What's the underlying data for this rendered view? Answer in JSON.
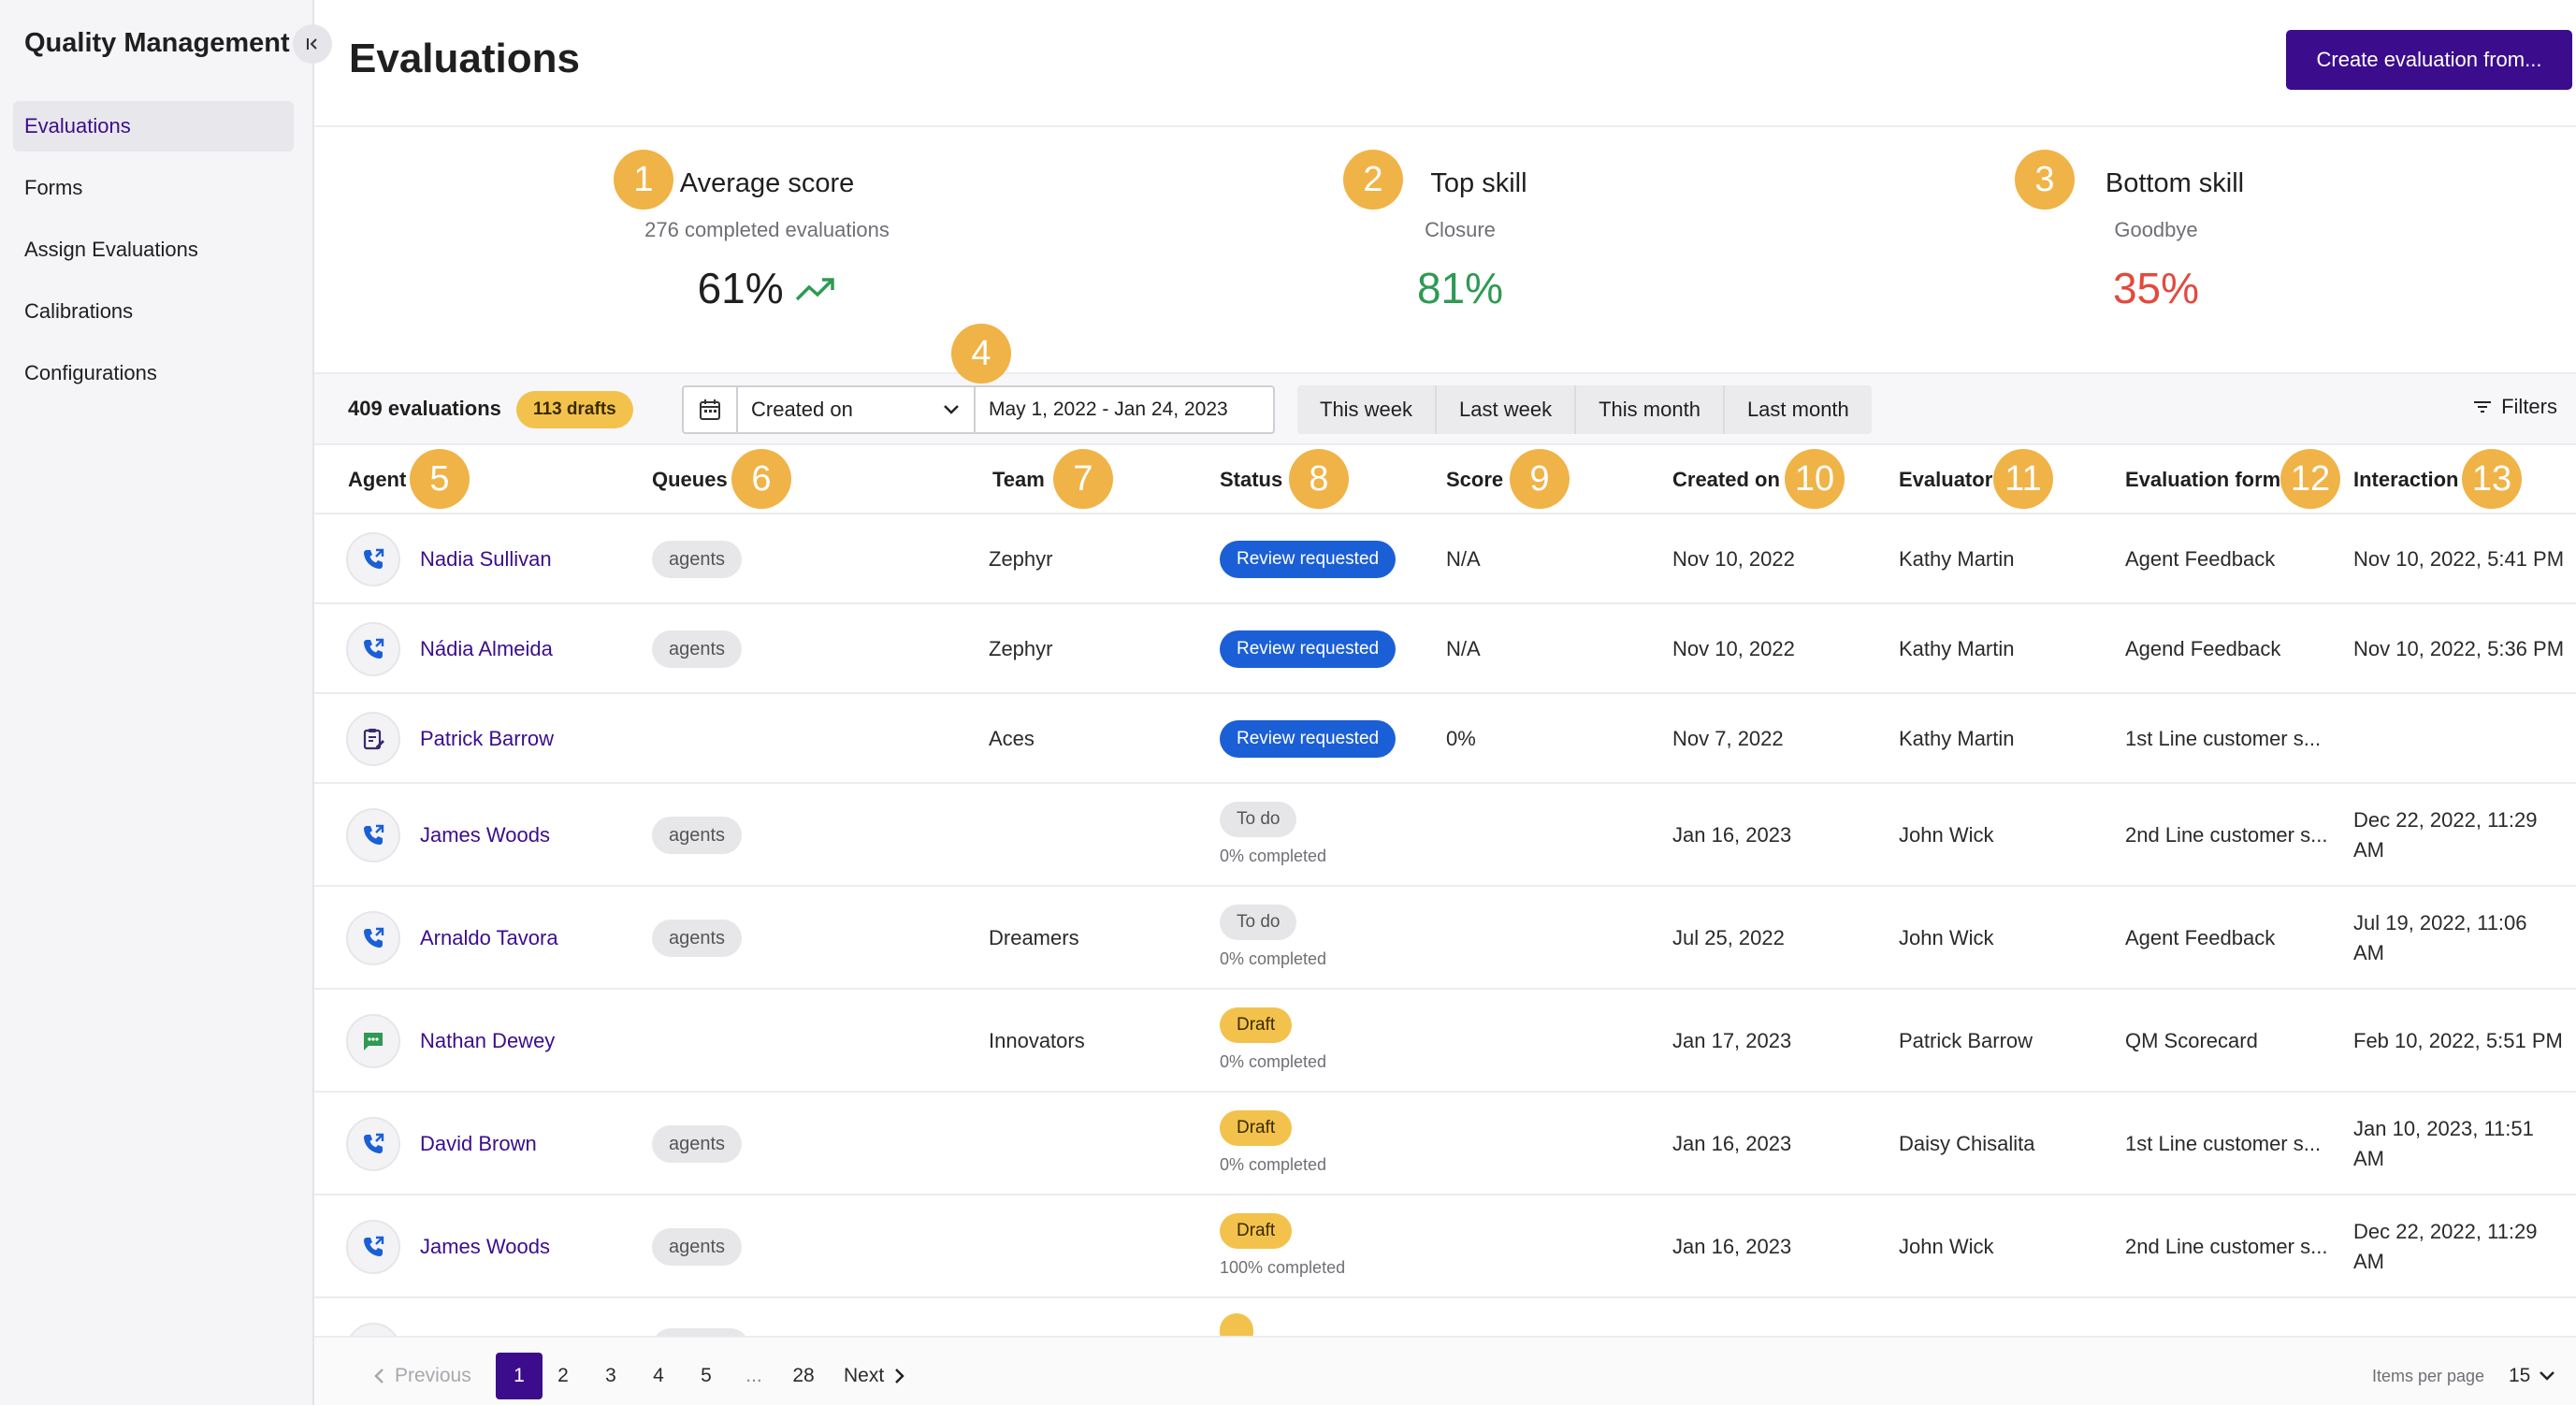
{
  "sidebar": {
    "title": "Quality Management",
    "items": [
      {
        "label": "Evaluations"
      },
      {
        "label": "Forms"
      },
      {
        "label": "Assign Evaluations"
      },
      {
        "label": "Calibrations"
      },
      {
        "label": "Configurations"
      }
    ]
  },
  "header": {
    "title": "Evaluations",
    "create_label": "Create evaluation from..."
  },
  "kpis": {
    "average": {
      "marker": "1",
      "title": "Average score",
      "sub": "276 completed evaluations",
      "value": "61%"
    },
    "top": {
      "marker": "2",
      "title": "Top skill",
      "sub": "Closure",
      "value": "81%"
    },
    "bottom": {
      "marker": "3",
      "title": "Bottom skill",
      "sub": "Goodbye",
      "value": "35%"
    }
  },
  "toolbar": {
    "count": "409 evaluations",
    "drafts": "113 drafts",
    "marker": "4",
    "date_field": "Created on",
    "date_range": "May 1, 2022 - Jan 24, 2023",
    "quick": [
      "This week",
      "Last week",
      "This month",
      "Last month"
    ],
    "filters": "Filters"
  },
  "columns": [
    {
      "label": "Agent",
      "marker": "5"
    },
    {
      "label": "Queues",
      "marker": "6"
    },
    {
      "label": "Team",
      "marker": "7"
    },
    {
      "label": "Status",
      "marker": "8"
    },
    {
      "label": "Score",
      "marker": "9"
    },
    {
      "label": "Created on",
      "marker": "10"
    },
    {
      "label": "Evaluator",
      "marker": "11"
    },
    {
      "label": "Evaluation form",
      "marker": "12"
    },
    {
      "label": "Interaction",
      "marker": "13"
    }
  ],
  "rows": [
    {
      "icon": "phone-icon",
      "agent": "Nadia Sullivan",
      "queue": "agents",
      "team": "Zephyr",
      "status": "Review requested",
      "status_kind": "review",
      "progress": "",
      "score": "N/A",
      "created": "Nov 10, 2022",
      "evaluator": "Kathy Martin",
      "form": "Agent Feedback",
      "interaction": "Nov 10, 2022, 5:41 PM",
      "interaction2": ""
    },
    {
      "icon": "phone-icon",
      "agent": "Nádia Almeida",
      "queue": "agents",
      "team": "Zephyr",
      "status": "Review requested",
      "status_kind": "review",
      "progress": "",
      "score": "N/A",
      "created": "Nov 10, 2022",
      "evaluator": "Kathy Martin",
      "form": "Agend Feedback",
      "interaction": "Nov 10, 2022, 5:36 PM",
      "interaction2": ""
    },
    {
      "icon": "clipboard-icon",
      "agent": "Patrick Barrow",
      "queue": "",
      "team": "Aces",
      "status": "Review requested",
      "status_kind": "review",
      "progress": "",
      "score": "0%",
      "created": "Nov 7, 2022",
      "evaluator": "Kathy Martin",
      "form": "1st Line customer s...",
      "interaction": "",
      "interaction2": ""
    },
    {
      "icon": "phone-icon",
      "agent": "James Woods",
      "queue": "agents",
      "team": "",
      "status": "To do",
      "status_kind": "todo",
      "progress": "0% completed",
      "score": "",
      "created": "Jan 16, 2023",
      "evaluator": "John Wick",
      "form": "2nd Line customer s...",
      "interaction": "Dec 22, 2022, 11:29",
      "interaction2": "AM"
    },
    {
      "icon": "phone-icon",
      "agent": "Arnaldo Tavora",
      "queue": "agents",
      "team": "Dreamers",
      "status": "To do",
      "status_kind": "todo",
      "progress": "0% completed",
      "score": "",
      "created": "Jul 25, 2022",
      "evaluator": "John Wick",
      "form": "Agent Feedback",
      "interaction": "Jul 19, 2022, 11:06",
      "interaction2": "AM"
    },
    {
      "icon": "chat-icon",
      "agent": "Nathan Dewey",
      "queue": "",
      "team": "Innovators",
      "status": "Draft",
      "status_kind": "draft",
      "progress": "0% completed",
      "score": "",
      "created": "Jan 17, 2023",
      "evaluator": "Patrick Barrow",
      "form": "QM Scorecard",
      "interaction": "Feb 10, 2022, 5:51 PM",
      "interaction2": ""
    },
    {
      "icon": "phone-icon",
      "agent": "David Brown",
      "queue": "agents",
      "team": "",
      "status": "Draft",
      "status_kind": "draft",
      "progress": "0% completed",
      "score": "",
      "created": "Jan 16, 2023",
      "evaluator": "Daisy Chisalita",
      "form": "1st Line customer s...",
      "interaction": "Jan 10, 2023, 11:51",
      "interaction2": "AM"
    },
    {
      "icon": "phone-icon",
      "agent": "James Woods",
      "queue": "agents",
      "team": "",
      "status": "Draft",
      "status_kind": "draft",
      "progress": "100% completed",
      "score": "",
      "created": "Jan 16, 2023",
      "evaluator": "John Wick",
      "form": "2nd Line customer s...",
      "interaction": "Dec 22, 2022, 11:29",
      "interaction2": "AM"
    }
  ],
  "pagination": {
    "previous": "Previous",
    "pages": [
      "1",
      "2",
      "3",
      "4",
      "5",
      "...",
      "28"
    ],
    "next": "Next",
    "items_per_page_label": "Items per page",
    "items_per_page": "15"
  },
  "colors": {
    "brand": "#3b0d8c",
    "marker": "#f0b347",
    "positive": "#2e9a53",
    "negative": "#e24a3f",
    "review": "#1b5fd6",
    "draft": "#f2c24d"
  }
}
